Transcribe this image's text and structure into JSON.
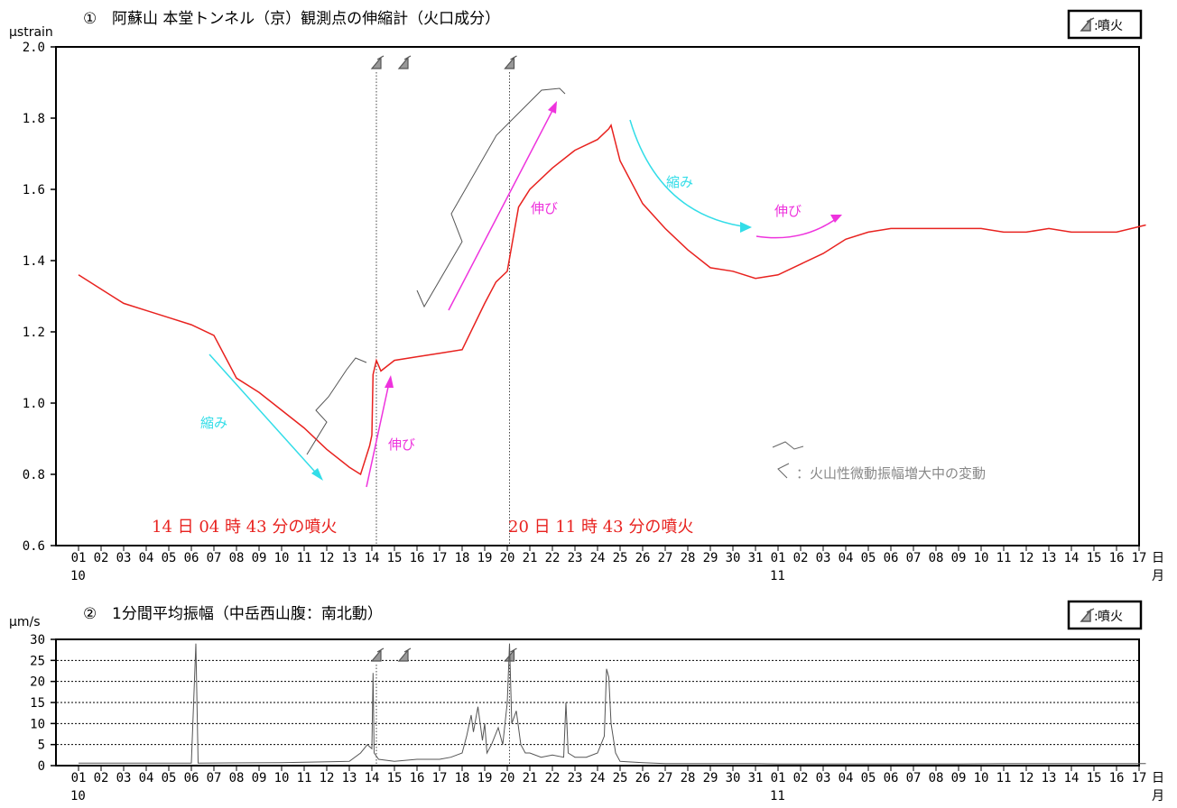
{
  "chart_data": [
    {
      "type": "line",
      "panel_number": "①",
      "title": "阿蘇山 本堂トンネル（京）観測点の伸縮計（火口成分）",
      "ylabel": "μstrain",
      "ylim": [
        0.6,
        2.0
      ],
      "y_ticks": [
        "0.6",
        "0.8",
        "1.0",
        "1.2",
        "1.4",
        "1.6",
        "1.8",
        "2.0"
      ],
      "x_ticks": [
        "01",
        "02",
        "03",
        "04",
        "05",
        "06",
        "07",
        "08",
        "09",
        "10",
        "11",
        "12",
        "13",
        "14",
        "15",
        "16",
        "17",
        "18",
        "19",
        "20",
        "21",
        "22",
        "23",
        "24",
        "25",
        "26",
        "27",
        "28",
        "29",
        "30",
        "31",
        "01",
        "02",
        "03",
        "04",
        "05",
        "06",
        "07",
        "08",
        "09",
        "10",
        "11",
        "12",
        "13",
        "14",
        "15",
        "16",
        "17"
      ],
      "month_labels": [
        {
          "day": "01",
          "label": "10"
        },
        {
          "day": "32",
          "label": "11"
        }
      ],
      "x_unit_top": "日",
      "x_unit_bottom": "月",
      "legend_text": "噴火",
      "series_color": "#e8221f",
      "x": [
        1,
        2,
        3,
        4,
        5,
        6,
        7,
        7.5,
        8,
        9,
        10,
        11,
        12,
        13,
        13.5,
        13.9,
        14,
        14.05,
        14.2,
        14.4,
        15,
        16,
        17,
        18,
        19,
        19.5,
        20,
        20.5,
        21,
        22,
        23,
        24,
        24.5,
        24.6,
        25,
        26,
        27,
        28,
        29,
        30,
        31,
        32,
        33,
        34,
        35,
        36,
        37,
        38,
        39,
        40,
        41,
        42,
        43,
        44,
        45,
        46,
        47,
        48.3
      ],
      "y": [
        1.36,
        1.32,
        1.28,
        1.26,
        1.24,
        1.22,
        1.19,
        1.13,
        1.07,
        1.03,
        0.98,
        0.93,
        0.87,
        0.82,
        0.8,
        0.88,
        0.91,
        1.08,
        1.12,
        1.09,
        1.12,
        1.13,
        1.14,
        1.15,
        1.28,
        1.34,
        1.37,
        1.55,
        1.6,
        1.66,
        1.71,
        1.74,
        1.77,
        1.78,
        1.68,
        1.56,
        1.49,
        1.43,
        1.38,
        1.37,
        1.35,
        1.36,
        1.39,
        1.42,
        1.46,
        1.48,
        1.49,
        1.49,
        1.49,
        1.49,
        1.49,
        1.48,
        1.48,
        1.49,
        1.48,
        1.48,
        1.48,
        1.5
      ],
      "eruption_days": [
        14.2,
        15.4,
        20.1
      ],
      "annotations": [
        {
          "text": "縮み",
          "color": "#33dde8"
        },
        {
          "text": "伸び",
          "color": "#ee33dd"
        },
        {
          "text": "伸び",
          "color": "#ee33dd"
        },
        {
          "text": "縮み",
          "color": "#33dde8"
        },
        {
          "text": "伸び",
          "color": "#ee33dd"
        },
        {
          "text": "：火山性微動振幅増大中の変動",
          "color": "#888888"
        }
      ],
      "eruption_labels": [
        {
          "text": "14 日 04 時 43 分の噴火",
          "color": "#e8221f"
        },
        {
          "text": "20 日 11 時 43 分の噴火",
          "color": "#e8221f"
        }
      ]
    },
    {
      "type": "line",
      "panel_number": "②",
      "title": "1分間平均振幅（中岳西山腹：南北動）",
      "ylabel": "μm/s",
      "ylim": [
        0,
        30
      ],
      "y_ticks": [
        "0",
        "5",
        "10",
        "15",
        "20",
        "25",
        "30"
      ],
      "x_ticks": [
        "01",
        "02",
        "03",
        "04",
        "05",
        "06",
        "07",
        "08",
        "09",
        "10",
        "11",
        "12",
        "13",
        "14",
        "15",
        "16",
        "17",
        "18",
        "19",
        "20",
        "21",
        "22",
        "23",
        "24",
        "25",
        "26",
        "27",
        "28",
        "29",
        "30",
        "31",
        "01",
        "02",
        "03",
        "04",
        "05",
        "06",
        "07",
        "08",
        "09",
        "10",
        "11",
        "12",
        "13",
        "14",
        "15",
        "16",
        "17"
      ],
      "month_labels": [
        {
          "day": "01",
          "label": "10"
        },
        {
          "day": "32",
          "label": "11"
        }
      ],
      "x_unit_top": "日",
      "x_unit_bottom": "月",
      "legend_text": "噴火",
      "series_color": "#555555",
      "x": [
        1,
        5,
        6,
        6.2,
        6.3,
        10,
        13,
        13.5,
        13.8,
        14,
        14.05,
        14.1,
        14.3,
        15,
        16,
        17,
        17.5,
        18,
        18.2,
        18.4,
        18.5,
        18.7,
        18.9,
        19,
        19.1,
        19.3,
        19.6,
        19.8,
        20,
        20.1,
        20.2,
        20.4,
        20.6,
        20.8,
        21,
        21.5,
        22,
        22.5,
        22.6,
        22.7,
        23,
        23.5,
        24,
        24.3,
        24.4,
        24.5,
        24.6,
        24.8,
        25,
        26,
        27,
        28,
        29,
        30,
        31,
        32,
        35,
        38,
        40,
        42,
        44,
        46,
        48.3
      ],
      "y": [
        0.6,
        0.6,
        0.6,
        29,
        0.6,
        0.7,
        1.0,
        3.0,
        5.0,
        4.0,
        22,
        3.0,
        1.5,
        1.0,
        1.5,
        1.5,
        2.0,
        3.0,
        7.0,
        12.0,
        8.0,
        14.0,
        6.0,
        10.0,
        3.0,
        5.0,
        9.0,
        5.0,
        15.0,
        29.0,
        10.0,
        13.0,
        5.0,
        3.0,
        3.0,
        2.0,
        2.5,
        2.0,
        15.0,
        3.0,
        2.0,
        2.0,
        3.0,
        7.0,
        23.0,
        21.0,
        10.0,
        3.0,
        1.0,
        0.7,
        0.5,
        0.5,
        0.5,
        0.5,
        0.5,
        0.4,
        0.4,
        0.4,
        0.4,
        0.5,
        0.5,
        0.5,
        0.5
      ],
      "eruption_days": [
        14.2,
        15.4,
        20.1
      ]
    }
  ]
}
